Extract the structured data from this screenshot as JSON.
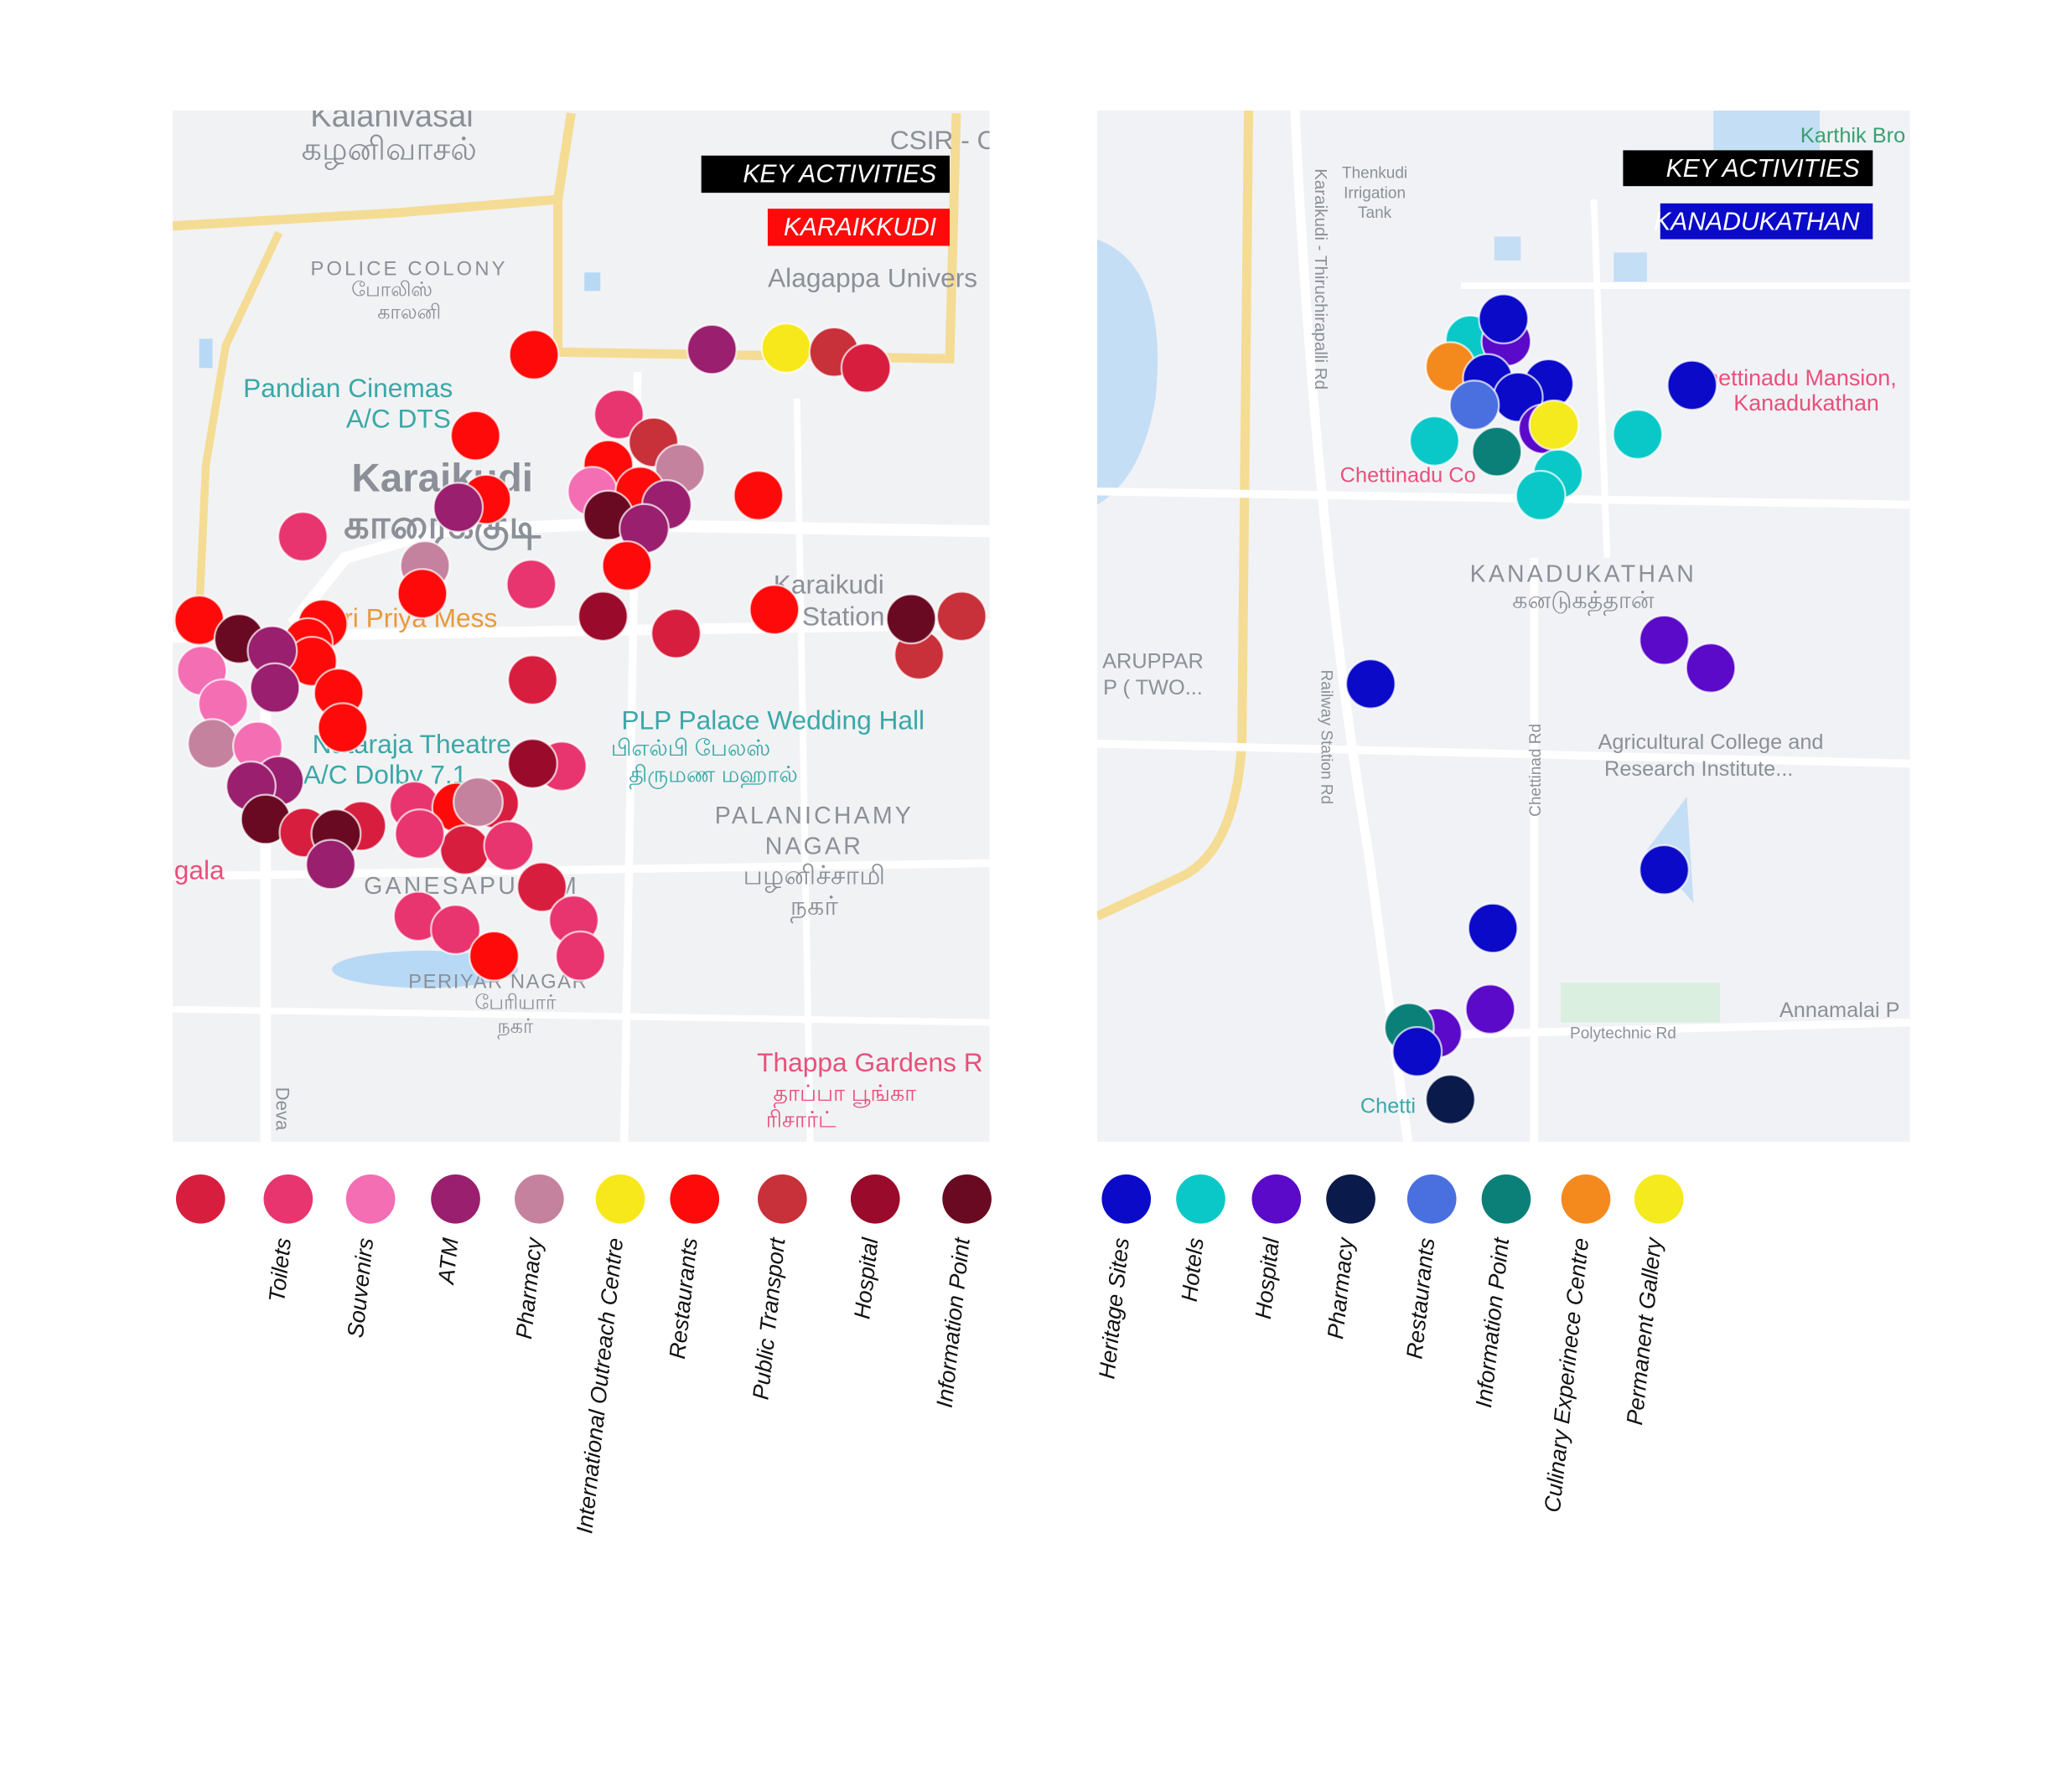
{
  "left": {
    "badge_title": "KEY ACTIVITIES",
    "badge_place": "KARAIKKUDI",
    "map_labels": [
      "Kalanivasal",
      "கழனிவாசல்",
      "CSIR - C",
      "POLICE COLONY",
      "போலிஸ்",
      "காலனி",
      "Alagappa Univers",
      "Pandian Cinemas",
      "A/C DTS",
      "Karaikudi",
      "காரைக்குடி",
      "Sri Priya Mess",
      "Karaikudi",
      "Station",
      "Nataraja Theatre",
      "A/C Dolby 7.1",
      "PLP Palace Wedding Hall",
      "பிஎல்பி பேலஸ்",
      "திருமண மஹால்",
      "PALANICHAMY",
      "NAGAR",
      "பழனிச்சாமி",
      "நகர்",
      "gala",
      "GANESAPURAM",
      "PERIYAR NAGAR",
      "பேரியார்",
      "நகர்",
      "Thappa Gardens R",
      "தாப்பா பூங்கா",
      "ரிசார்ட்",
      "Deva"
    ],
    "legend": [
      {
        "label": null,
        "color": "#d81e3f"
      },
      {
        "label": "Toilets",
        "color": "#e8356f"
      },
      {
        "label": "Souvenirs",
        "color": "#f46eb4"
      },
      {
        "label": "ATM",
        "color": "#9a1f6e"
      },
      {
        "label": "Pharmacy",
        "color": "#c4829f"
      },
      {
        "label": "International Outreach Centre",
        "color": "#f7e81c"
      },
      {
        "label": "Restaurants",
        "color": "#ff0a0a"
      },
      {
        "label": "Public Transport",
        "color": "#c8303a"
      },
      {
        "label": "Hospital",
        "color": "#9a0a2a"
      },
      {
        "label": "Information Point",
        "color": "#6a0a22"
      }
    ]
  },
  "right": {
    "badge_title": "KEY ACTIVITIES",
    "badge_place": "KANADUKATHAN",
    "map_labels": [
      "Thenkudi",
      "Irrigation",
      "Tank",
      "Karthik Bro",
      "Karaikudi - Thiruchirapalli Rd",
      "Chettinadu Mansion,",
      "Kanadukathan",
      "Chettinadu Co",
      "KANADUKATHAN",
      "கனடுகத்தான்",
      "ARUPPAR",
      "P ( TWO...",
      "Railway Station Rd",
      "Agricultural College and",
      "Research Institute...",
      "Chettinad Rd",
      "Polytechnic Rd",
      "Annamalai P",
      "Chetti"
    ],
    "legend": [
      {
        "label": "Heritage Sites",
        "color": "#0a0ac8"
      },
      {
        "label": "Hotels",
        "color": "#0ac8c8"
      },
      {
        "label": "Hospital",
        "color": "#5a0ac8"
      },
      {
        "label": "Pharmacy",
        "color": "#0a1a4a"
      },
      {
        "label": "Restaurants",
        "color": "#4a70e0"
      },
      {
        "label": "Information Point",
        "color": "#0a8078"
      },
      {
        "label": "Culinary Experinece Centre",
        "color": "#f48a1e"
      },
      {
        "label": "Permanent  Gallery",
        "color": "#f4ea1e"
      }
    ]
  }
}
